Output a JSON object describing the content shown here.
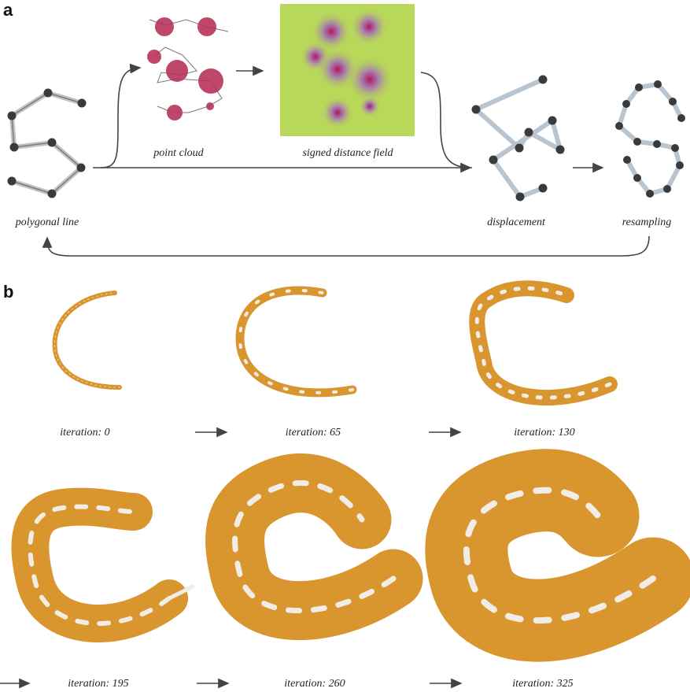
{
  "panel_a": {
    "label": "a",
    "steps": [
      "polygonal line",
      "point cloud",
      "signed distance field",
      "displacement",
      "resampling"
    ]
  },
  "panel_b": {
    "label": "b",
    "iterations": [
      "iteration: 0",
      "iteration: 65",
      "iteration: 130",
      "iteration: 195",
      "iteration: 260",
      "iteration: 325"
    ]
  }
}
